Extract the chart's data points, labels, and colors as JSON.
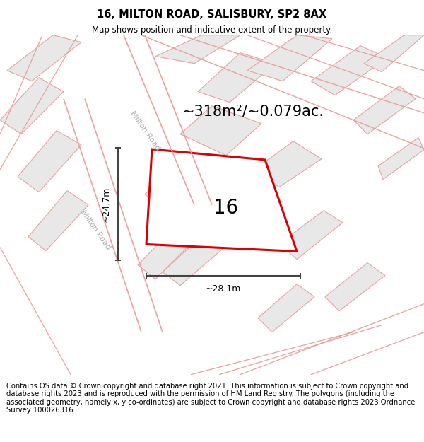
{
  "title": "16, MILTON ROAD, SALISBURY, SP2 8AX",
  "subtitle": "Map shows position and indicative extent of the property.",
  "area_text": "~318m²/~0.079ac.",
  "dim_vertical": "~24.7m",
  "dim_horizontal": "~28.1m",
  "property_label": "16",
  "road_label_1": "Milton Road",
  "road_label_2": "Milton Road",
  "copyright_text": "Contains OS data © Crown copyright and database right 2021. This information is subject to Crown copyright and database rights 2023 and is reproduced with the permission of HM Land Registry. The polygons (including the associated geometry, namely x, y co-ordinates) are subject to Crown copyright and database rights 2023 Ordnance Survey 100026316.",
  "bg_color": "#ffffff",
  "building_fill": "#e8e8e8",
  "building_edge": "#e8a0a0",
  "road_line_color": "#e8a0a0",
  "property_edge": "#dd0000",
  "dim_line_color": "#444444",
  "title_fontsize": 10.5,
  "subtitle_fontsize": 8.5,
  "area_fontsize": 15,
  "label_fontsize": 20,
  "road_fontsize": 8,
  "copyright_fontsize": 7.2
}
